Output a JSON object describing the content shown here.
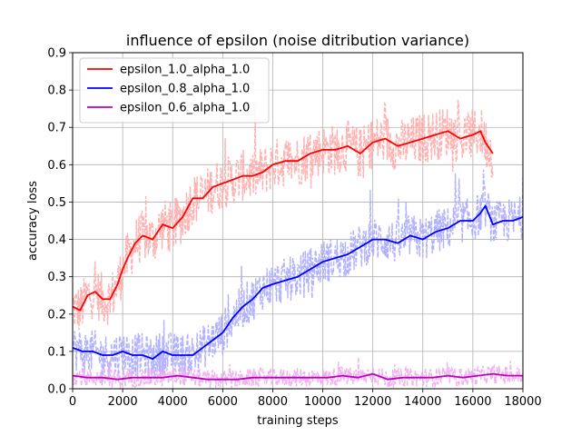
{
  "chart_data": {
    "type": "line",
    "title": "influence of epsilon (noise ditribution variance)",
    "xlabel": "training steps",
    "ylabel": "accuracy loss",
    "xlim": [
      0,
      18000
    ],
    "ylim": [
      0,
      0.9
    ],
    "xticks": [
      0,
      2000,
      4000,
      6000,
      8000,
      10000,
      12000,
      14000,
      16000,
      18000
    ],
    "yticks": [
      0.0,
      0.1,
      0.2,
      0.3,
      0.4,
      0.5,
      0.6,
      0.7,
      0.8,
      0.9
    ],
    "xtick_labels": [
      "0",
      "2000",
      "4000",
      "6000",
      "8000",
      "10000",
      "12000",
      "14000",
      "16000",
      "18000"
    ],
    "ytick_labels": [
      "0.0",
      "0.1",
      "0.2",
      "0.3",
      "0.4",
      "0.5",
      "0.6",
      "0.7",
      "0.8",
      "0.9"
    ],
    "grid": true,
    "legend_position": "top-left",
    "series": [
      {
        "name": "epsilon_1.0_alpha_1.0",
        "color": "#ff0000",
        "raw_color": "#ffaaaa",
        "raw_noise": 0.07,
        "x": [
          0,
          300,
          600,
          900,
          1200,
          1500,
          1800,
          2000,
          2200,
          2500,
          2800,
          3200,
          3600,
          4000,
          4400,
          4800,
          5200,
          5600,
          6000,
          6400,
          6800,
          7200,
          7600,
          8000,
          8500,
          9000,
          9500,
          10000,
          10500,
          11000,
          11500,
          12000,
          12500,
          13000,
          13500,
          14000,
          14500,
          15000,
          15500,
          16000,
          16300,
          16500,
          16800
        ],
        "y": [
          0.22,
          0.21,
          0.25,
          0.26,
          0.24,
          0.24,
          0.28,
          0.32,
          0.35,
          0.39,
          0.41,
          0.4,
          0.44,
          0.43,
          0.46,
          0.51,
          0.51,
          0.54,
          0.55,
          0.56,
          0.57,
          0.57,
          0.58,
          0.6,
          0.61,
          0.61,
          0.63,
          0.64,
          0.64,
          0.65,
          0.63,
          0.66,
          0.67,
          0.65,
          0.66,
          0.67,
          0.68,
          0.69,
          0.67,
          0.68,
          0.69,
          0.66,
          0.63
        ]
      },
      {
        "name": "epsilon_0.8_alpha_1.0",
        "color": "#0000ff",
        "raw_color": "#aaaaff",
        "raw_noise": 0.06,
        "x": [
          0,
          400,
          800,
          1200,
          1600,
          2000,
          2400,
          2800,
          3200,
          3600,
          4000,
          4400,
          4800,
          5200,
          5600,
          6000,
          6400,
          6800,
          7200,
          7600,
          8000,
          8500,
          9000,
          9500,
          10000,
          10500,
          11000,
          11500,
          12000,
          12500,
          13000,
          13500,
          14000,
          14500,
          15000,
          15500,
          16000,
          16300,
          16500,
          16800,
          17200,
          17600,
          18000
        ],
        "y": [
          0.11,
          0.1,
          0.1,
          0.09,
          0.09,
          0.1,
          0.09,
          0.09,
          0.08,
          0.1,
          0.09,
          0.09,
          0.09,
          0.11,
          0.13,
          0.15,
          0.19,
          0.22,
          0.24,
          0.27,
          0.28,
          0.29,
          0.3,
          0.32,
          0.34,
          0.35,
          0.36,
          0.38,
          0.4,
          0.4,
          0.39,
          0.41,
          0.4,
          0.42,
          0.43,
          0.45,
          0.45,
          0.47,
          0.49,
          0.44,
          0.45,
          0.45,
          0.46
        ]
      },
      {
        "name": "epsilon_0.6_alpha_1.0",
        "color": "#bf00bf",
        "raw_color": "#eeaaee",
        "raw_noise": 0.025,
        "x": [
          0,
          600,
          1200,
          1800,
          2400,
          3000,
          3600,
          4200,
          4800,
          5400,
          6000,
          6600,
          7200,
          7800,
          8400,
          9000,
          9600,
          10200,
          10800,
          11400,
          12000,
          12600,
          13200,
          13800,
          14400,
          15000,
          15600,
          16200,
          16800,
          17400,
          18000
        ],
        "y": [
          0.035,
          0.03,
          0.03,
          0.025,
          0.03,
          0.03,
          0.03,
          0.035,
          0.03,
          0.025,
          0.025,
          0.025,
          0.03,
          0.03,
          0.03,
          0.03,
          0.03,
          0.03,
          0.035,
          0.03,
          0.04,
          0.025,
          0.03,
          0.03,
          0.03,
          0.035,
          0.03,
          0.035,
          0.04,
          0.035,
          0.035
        ]
      }
    ]
  }
}
